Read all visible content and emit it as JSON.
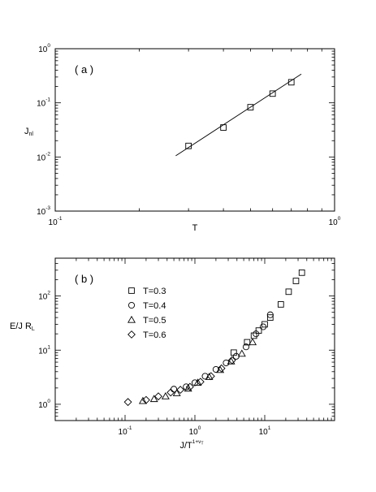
{
  "chart_data": [
    {
      "type": "scatter",
      "panel_label": "( a )",
      "xlabel": "T",
      "ylabel": "J",
      "ylabel_sub": "nl",
      "x_scale": "log",
      "y_scale": "log",
      "xlim": [
        0.1,
        1.0
      ],
      "ylim": [
        0.001,
        1.0
      ],
      "x_ticks": [
        {
          "base": "10",
          "exp": "-1"
        },
        {
          "base": "10",
          "exp": "0"
        }
      ],
      "y_ticks": [
        {
          "base": "10",
          "exp": "-3"
        },
        {
          "base": "10",
          "exp": "-2"
        },
        {
          "base": "10",
          "exp": "-1"
        },
        {
          "base": "10",
          "exp": "0"
        }
      ],
      "grid": false,
      "series": [
        {
          "marker": "square",
          "x": [
            0.3,
            0.4,
            0.5,
            0.6,
            0.7
          ],
          "y": [
            0.016,
            0.035,
            0.083,
            0.148,
            0.24
          ]
        }
      ],
      "fit_line": {
        "x": [
          0.27,
          0.76
        ],
        "y": [
          0.0105,
          0.34
        ]
      }
    },
    {
      "type": "scatter",
      "panel_label": "( b )",
      "xlabel": "J/T",
      "xlabel_sup": "1+ν",
      "xlabel_sup_sub": "T",
      "ylabel": "E/J R",
      "ylabel_sub": "L",
      "x_scale": "log",
      "y_scale": "log",
      "xlim": [
        0.01,
        100
      ],
      "ylim": [
        0.5,
        500
      ],
      "x_ticks": [
        {
          "base": "10",
          "exp": "-1"
        },
        {
          "base": "10",
          "exp": "0"
        },
        {
          "base": "10",
          "exp": "1"
        }
      ],
      "y_ticks": [
        {
          "base": "10",
          "exp": "0"
        },
        {
          "base": "10",
          "exp": "1"
        },
        {
          "base": "10",
          "exp": "2"
        }
      ],
      "grid": false,
      "legend_position": "top-center",
      "series": [
        {
          "name": "T=0.3",
          "marker": "square",
          "x": [
            3.6,
            5.6,
            7.0,
            8.2,
            10.0,
            12.0,
            17.0,
            22.0,
            28.0,
            34.0
          ],
          "y": [
            9.0,
            14.0,
            18.5,
            23.0,
            30.0,
            40.0,
            70.0,
            120.0,
            190.0,
            270.0
          ]
        },
        {
          "name": "T=0.4",
          "marker": "circle",
          "x": [
            0.5,
            0.75,
            1.0,
            1.4,
            2.0,
            2.8,
            3.9,
            5.4,
            7.5,
            9.5,
            12.0
          ],
          "y": [
            1.9,
            2.1,
            2.5,
            3.3,
            4.4,
            5.8,
            7.7,
            11.5,
            20.0,
            27.0,
            45.0
          ]
        },
        {
          "name": "T=0.5",
          "marker": "triangle",
          "x": [
            0.18,
            0.26,
            0.38,
            0.55,
            0.8,
            1.1,
            1.6,
            2.3,
            3.3,
            4.7,
            6.7
          ],
          "y": [
            1.15,
            1.25,
            1.4,
            1.6,
            1.95,
            2.5,
            3.2,
            4.3,
            6.2,
            8.6,
            14.0
          ]
        },
        {
          "name": "T=0.6",
          "marker": "diamond",
          "x": [
            0.11,
            0.2,
            0.3,
            0.45,
            0.62,
            0.85,
            1.2,
            1.7,
            2.4,
            3.4
          ],
          "y": [
            1.1,
            1.2,
            1.4,
            1.65,
            1.85,
            2.1,
            2.6,
            3.3,
            4.6,
            6.5
          ]
        }
      ]
    }
  ]
}
